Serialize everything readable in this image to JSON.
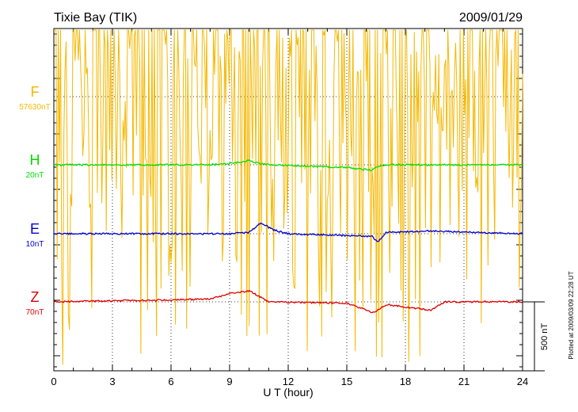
{
  "chart_data": {
    "type": "line",
    "title": "Tixie Bay (TIK)",
    "date": "2009/01/29",
    "xlabel": "U T (hour)",
    "xlim": [
      0,
      24
    ],
    "xticks": [
      0,
      3,
      6,
      9,
      12,
      15,
      18,
      21,
      24
    ],
    "scale_label": "500 nT",
    "plotted_label": "Plotted at 2009/03/09 22:28 UT",
    "series": [
      {
        "name": "F",
        "offset_label": "57630nT",
        "color": "#f5b800",
        "baseline_nT": 0,
        "knots": [
          [
            0,
            0
          ],
          [
            24,
            0
          ]
        ],
        "noise": true
      },
      {
        "name": "H",
        "offset_label": "20nT",
        "color": "#00dd00",
        "baseline_nT": 0,
        "knots": [
          [
            0,
            0
          ],
          [
            8,
            0
          ],
          [
            9,
            5
          ],
          [
            10,
            15
          ],
          [
            10.5,
            5
          ],
          [
            11,
            0
          ],
          [
            15,
            -10
          ],
          [
            16.3,
            -20
          ],
          [
            16.6,
            -5
          ],
          [
            17,
            0
          ],
          [
            24,
            0
          ]
        ]
      },
      {
        "name": "E",
        "offset_label": "10nT",
        "color": "#0000cc",
        "baseline_nT": 0,
        "knots": [
          [
            0,
            0
          ],
          [
            9,
            0
          ],
          [
            10,
            5
          ],
          [
            10.6,
            40
          ],
          [
            11.2,
            15
          ],
          [
            12,
            0
          ],
          [
            16.3,
            -10
          ],
          [
            16.6,
            -30
          ],
          [
            17,
            5
          ],
          [
            19.3,
            10
          ],
          [
            24,
            0
          ]
        ]
      },
      {
        "name": "Z",
        "offset_label": "70nT",
        "color": "#dd0000",
        "baseline_nT": 0,
        "knots": [
          [
            0,
            0
          ],
          [
            8,
            10
          ],
          [
            9,
            30
          ],
          [
            10,
            40
          ],
          [
            10.5,
            20
          ],
          [
            11,
            0
          ],
          [
            15,
            -5
          ],
          [
            16.4,
            -40
          ],
          [
            17,
            -10
          ],
          [
            19.3,
            -30
          ],
          [
            20,
            0
          ],
          [
            24,
            0
          ]
        ]
      }
    ]
  }
}
